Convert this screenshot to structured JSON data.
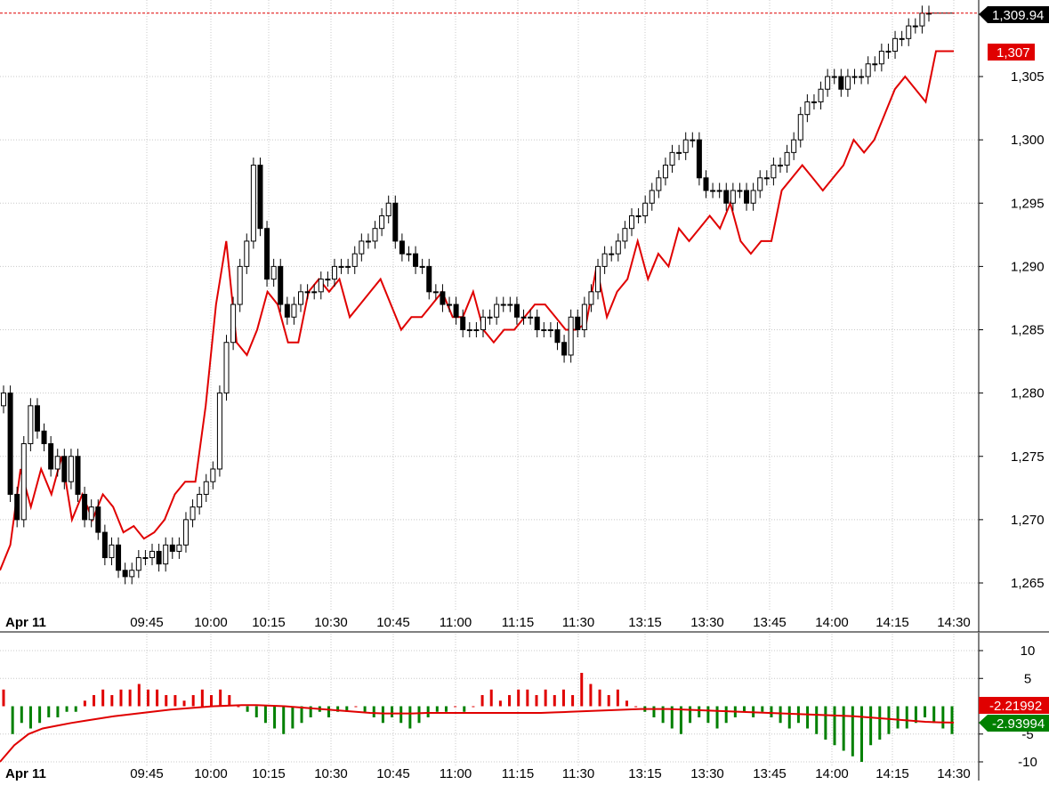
{
  "chart_data": [
    {
      "type": "candlestick",
      "date_label": "Apr 11",
      "x_ticks": [
        "09:45",
        "10:00",
        "10:15",
        "10:30",
        "10:45",
        "11:00",
        "11:15",
        "11:30",
        "13:15",
        "13:30",
        "13:45",
        "14:00",
        "14:15",
        "14:30"
      ],
      "y_ticks": [
        "1,265",
        "1,270",
        "1,275",
        "1,280",
        "1,285",
        "1,290",
        "1,295",
        "1,300",
        "1,305"
      ],
      "ylim": [
        1262,
        1311
      ],
      "last_price_label": "1,309.94",
      "last_price": 1309.94,
      "overlay_label": "1,307",
      "overlay_last": 1307,
      "overlay_color": "#e00000",
      "up_color": "#ffffff",
      "down_color": "#000000",
      "grid": true,
      "candle_closes": [
        1280,
        1272,
        1270,
        1276,
        1279,
        1277,
        1276,
        1274,
        1275,
        1273,
        1275,
        1272,
        1270,
        1271,
        1269,
        1267,
        1268,
        1266,
        1265.5,
        1266,
        1267,
        1267,
        1267.5,
        1266.5,
        1268,
        1267.5,
        1268,
        1270,
        1271,
        1272,
        1273,
        1274,
        1280,
        1284,
        1287,
        1290,
        1292,
        1298,
        1293,
        1289,
        1290,
        1287,
        1286,
        1287,
        1288,
        1288,
        1288,
        1289,
        1289,
        1290,
        1290,
        1290,
        1291,
        1292,
        1292,
        1293,
        1294,
        1295,
        1292,
        1291,
        1291,
        1290,
        1290,
        1288,
        1288,
        1287,
        1287,
        1286,
        1285,
        1285,
        1285,
        1286,
        1286,
        1287,
        1287,
        1287,
        1286,
        1286,
        1286,
        1285,
        1285,
        1285,
        1284,
        1283,
        1286,
        1285,
        1287,
        1288,
        1290,
        1291,
        1291,
        1292,
        1293,
        1294,
        1294,
        1295,
        1296,
        1297,
        1298,
        1299,
        1299,
        1300,
        1300,
        1297,
        1296,
        1296,
        1296,
        1295,
        1296,
        1296,
        1295,
        1296,
        1297,
        1297,
        1298,
        1298,
        1299,
        1300,
        1302,
        1303,
        1303,
        1304,
        1305,
        1305,
        1304,
        1305,
        1305,
        1305,
        1306,
        1306,
        1307,
        1307,
        1308,
        1308,
        1309,
        1309,
        1310,
        1309.94
      ],
      "overlay_values": [
        1266,
        1268,
        1274,
        1271,
        1274,
        1272,
        1275,
        1270,
        1272,
        1270,
        1272,
        1271,
        1269,
        1269.5,
        1268.5,
        1269,
        1270,
        1272,
        1273,
        1273,
        1279,
        1287,
        1292,
        1284,
        1283,
        1285,
        1288,
        1287,
        1284,
        1284,
        1288,
        1289,
        1288,
        1289,
        1286,
        1287,
        1288,
        1289,
        1287,
        1285,
        1286,
        1286,
        1287,
        1288,
        1286,
        1286,
        1288,
        1285,
        1284,
        1285,
        1285,
        1286,
        1287,
        1287,
        1286,
        1285,
        1285,
        1285.5,
        1290,
        1286,
        1288,
        1289,
        1292,
        1289,
        1291,
        1290,
        1293,
        1292,
        1293,
        1294,
        1293,
        1295,
        1292,
        1291,
        1292,
        1292,
        1296,
        1297,
        1298,
        1297,
        1296,
        1297,
        1298,
        1300,
        1299,
        1300,
        1302,
        1304,
        1305,
        1304,
        1303,
        1307
      ]
    },
    {
      "type": "bar",
      "y_ticks": [
        "10",
        "5",
        "-5",
        "-10"
      ],
      "ylim": [
        -12,
        13
      ],
      "histogram_label": "-2.21992",
      "signal_label": "-2.93994",
      "positive_color": "#e00000",
      "negative_color": "#008000",
      "signal_color": "#e00000",
      "histogram": [
        3,
        -5,
        -3,
        -4,
        -3,
        -2,
        -2,
        -1,
        -1,
        1,
        2,
        3,
        2,
        3,
        3,
        4,
        3,
        3,
        2,
        2,
        1,
        2,
        3,
        2,
        3,
        2,
        0,
        -1,
        -2,
        -3,
        -4,
        -5,
        -4,
        -3,
        -2,
        -1,
        -2,
        -1,
        -1,
        0,
        -1,
        -2,
        -3,
        -2,
        -3,
        -4,
        -3,
        -2,
        -1,
        -1,
        0,
        -1,
        0,
        2,
        3,
        1,
        2,
        3,
        3,
        2,
        3,
        2,
        3,
        2,
        6,
        4,
        3,
        2,
        3,
        1,
        0,
        -1,
        -2,
        -3,
        -4,
        -5,
        -3,
        -2,
        -3,
        -4,
        -3,
        -2,
        -1,
        -2,
        -1,
        -2,
        -3,
        -4,
        -3,
        -4,
        -5,
        -6,
        -7,
        -8,
        -9,
        -10,
        -7,
        -6,
        -5,
        -4,
        -4,
        -3,
        -2,
        -3,
        -4,
        -5
      ],
      "signal": [
        -10,
        -7,
        -5,
        -4,
        -3.5,
        -3,
        -2.6,
        -2.2,
        -1.8,
        -1.5,
        -1.2,
        -0.9,
        -0.6,
        -0.4,
        -0.2,
        0,
        0.1,
        0.2,
        0.2,
        0.1,
        0,
        -0.2,
        -0.4,
        -0.6,
        -0.8,
        -1,
        -1.2,
        -1.3,
        -1.3,
        -1.3,
        -1.2,
        -1.2,
        -1.2,
        -1.2,
        -1.2,
        -1.2,
        -1.2,
        -1.2,
        -1.2,
        -1.1,
        -1,
        -0.9,
        -0.8,
        -0.7,
        -0.6,
        -0.5,
        -0.5,
        -0.5,
        -0.6,
        -0.7,
        -0.8,
        -0.9,
        -1,
        -1.1,
        -1.2,
        -1.3,
        -1.4,
        -1.5,
        -1.6,
        -1.7,
        -1.8,
        -2,
        -2.2,
        -2.4,
        -2.6,
        -2.8,
        -2.9,
        -2.94
      ]
    }
  ]
}
